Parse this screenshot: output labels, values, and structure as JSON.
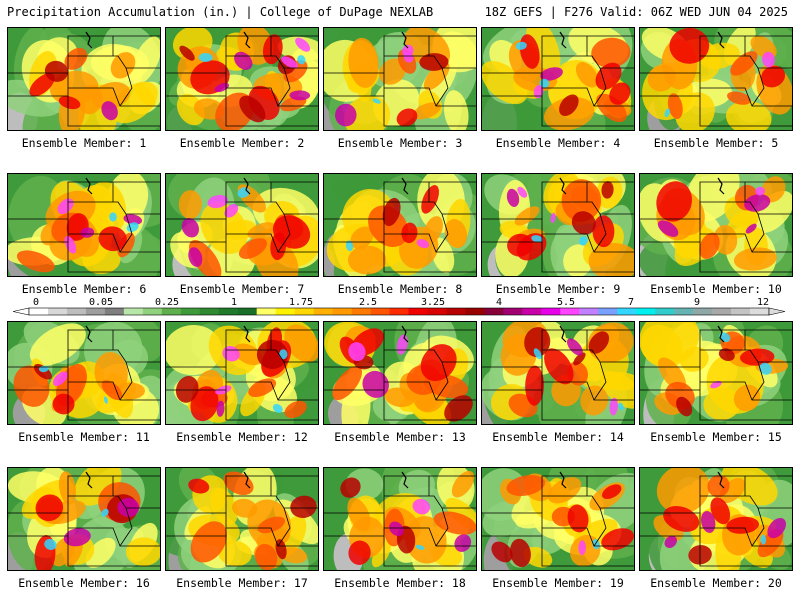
{
  "header": {
    "title_left": "Precipitation Accumulation (in.) | College of DuPage NEXLAB",
    "title_right": "18Z GEFS | F276 Valid: 06Z WED JUN 04 2025"
  },
  "members": [
    {
      "label": "Ensemble Member: 1"
    },
    {
      "label": "Ensemble Member: 2"
    },
    {
      "label": "Ensemble Member: 3"
    },
    {
      "label": "Ensemble Member: 4"
    },
    {
      "label": "Ensemble Member: 5"
    },
    {
      "label": "Ensemble Member: 6"
    },
    {
      "label": "Ensemble Member: 7"
    },
    {
      "label": "Ensemble Member: 8"
    },
    {
      "label": "Ensemble Member: 9"
    },
    {
      "label": "Ensemble Member: 10"
    },
    {
      "label": "Ensemble Member: 11"
    },
    {
      "label": "Ensemble Member: 12"
    },
    {
      "label": "Ensemble Member: 13"
    },
    {
      "label": "Ensemble Member: 14"
    },
    {
      "label": "Ensemble Member: 15"
    },
    {
      "label": "Ensemble Member: 16"
    },
    {
      "label": "Ensemble Member: 17"
    },
    {
      "label": "Ensemble Member: 18"
    },
    {
      "label": "Ensemble Member: 19"
    },
    {
      "label": "Ensemble Member: 20"
    }
  ],
  "colorbar": {
    "labels": [
      "0",
      "0.05",
      "0.25",
      "1",
      "1.75",
      "2.5",
      "3.25",
      "4",
      "5.5",
      "7",
      "9",
      "12"
    ],
    "colors": [
      "#ffffff",
      "#d8d8d8",
      "#bdbdbd",
      "#9e9e9e",
      "#7f7f7f",
      "#b8e6a8",
      "#8fd17c",
      "#5fb04c",
      "#3e9a3a",
      "#2f8a2f",
      "#1f7a2a",
      "#196f28",
      "#ffff66",
      "#fff200",
      "#ffd700",
      "#ffb000",
      "#ff9a00",
      "#ff7a00",
      "#ff5500",
      "#ff2a00",
      "#f00000",
      "#d80000",
      "#b80000",
      "#990000",
      "#88003a",
      "#a00070",
      "#c800a8",
      "#e800e8",
      "#ff44ff",
      "#c080ff",
      "#7aa0ff",
      "#33d6ff",
      "#00f0f0",
      "#33cccc",
      "#66b3b3",
      "#8fa7a7",
      "#a8a8a8",
      "#c4c4c4",
      "#dcdcdc"
    ]
  }
}
